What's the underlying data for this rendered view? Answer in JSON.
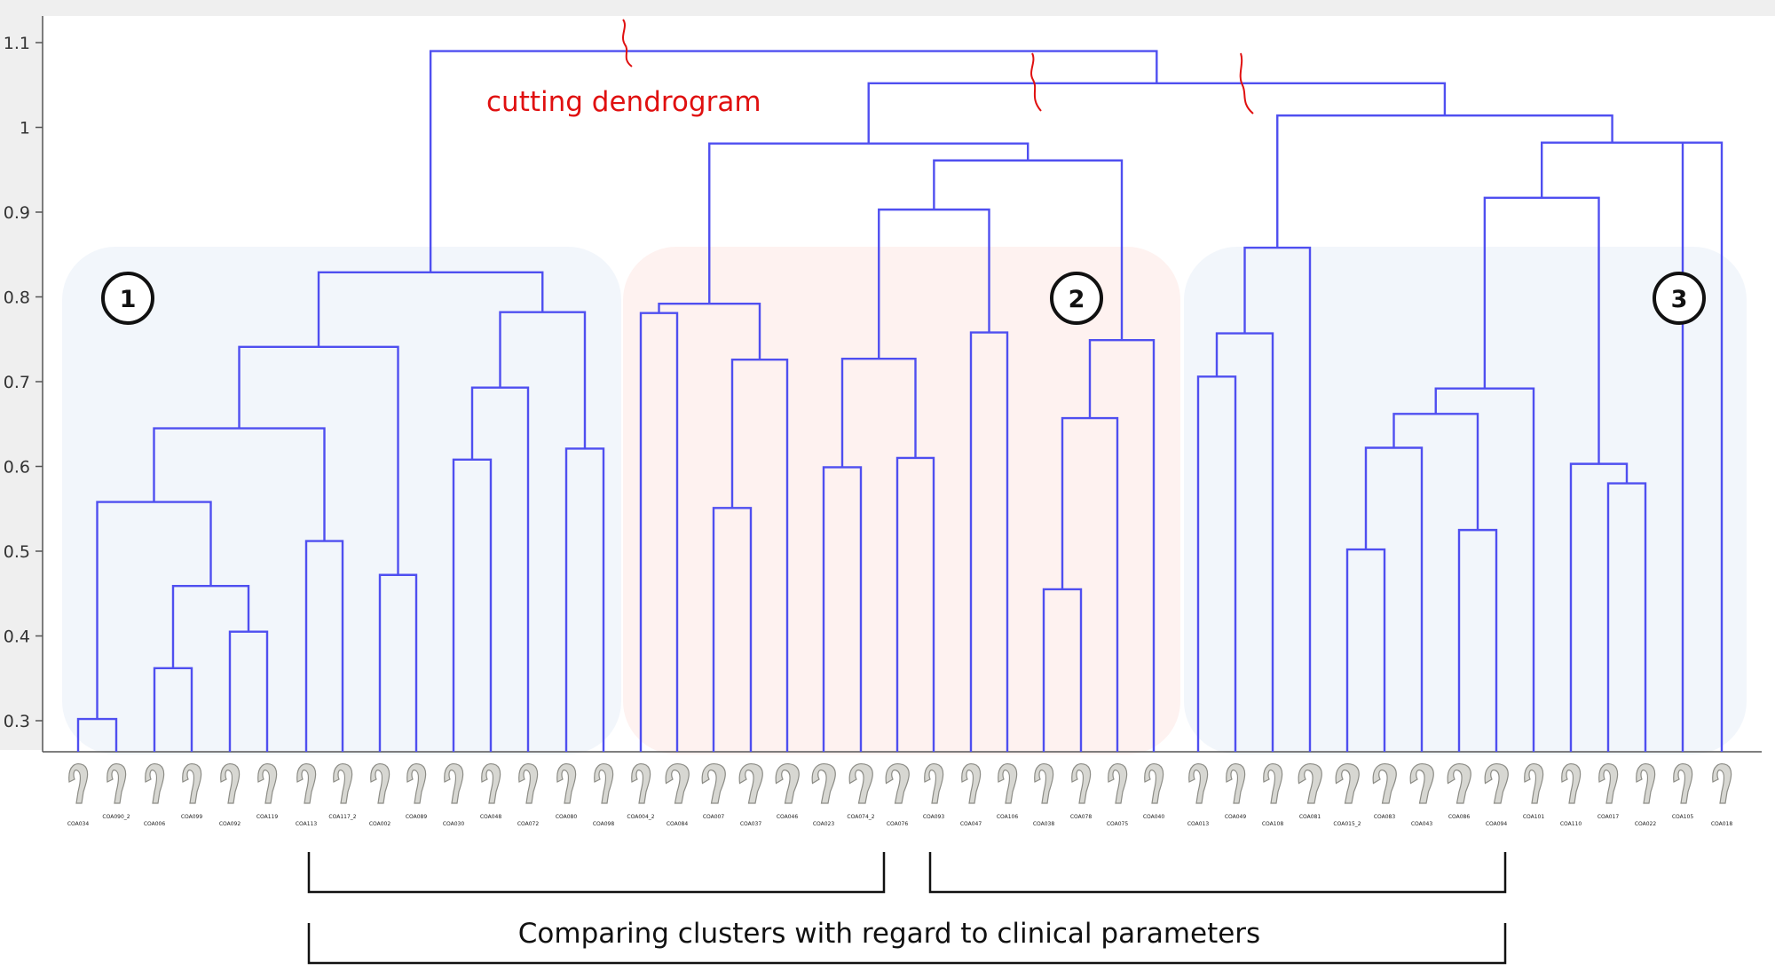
{
  "colors": {
    "dendrogram": "#4f4ff0",
    "annotation": "#e01010",
    "cluster_blue": "#e8eef8",
    "cluster_pink": "#fde7e4",
    "axis_panel": "#efefef"
  },
  "axis": {
    "ticks": [
      "0.3",
      "0.4",
      "0.5",
      "0.6",
      "0.7",
      "0.8",
      "0.9",
      "1",
      "1.1"
    ]
  },
  "annotation": {
    "text": "cutting dendrogram"
  },
  "clusters": [
    {
      "id": "1",
      "color": "blue"
    },
    {
      "id": "2",
      "color": "pink"
    },
    {
      "id": "3",
      "color": "blue"
    }
  ],
  "samples": [
    "COA034",
    "COA090_2",
    "COA006",
    "COA099",
    "COA092",
    "COA119",
    "COA113",
    "COA117_2",
    "COA002",
    "COA089",
    "COA030",
    "COA048",
    "COA072",
    "COA080",
    "COA098",
    "COA004_2",
    "COA084",
    "COA007",
    "COA037",
    "COA046",
    "COA023",
    "COA074_2",
    "COA076",
    "COA093",
    "COA047",
    "COA106",
    "COA038",
    "COA078",
    "COA075",
    "COA040",
    "COA013",
    "COA049",
    "COA108",
    "COA081",
    "COA015_2",
    "COA083",
    "COA043",
    "COA086",
    "COA094",
    "COA101",
    "COA110",
    "COA017",
    "COA022",
    "COA105",
    "COA018"
  ],
  "caption": {
    "text": "Comparing clusters with regard to clinical parameters"
  }
}
